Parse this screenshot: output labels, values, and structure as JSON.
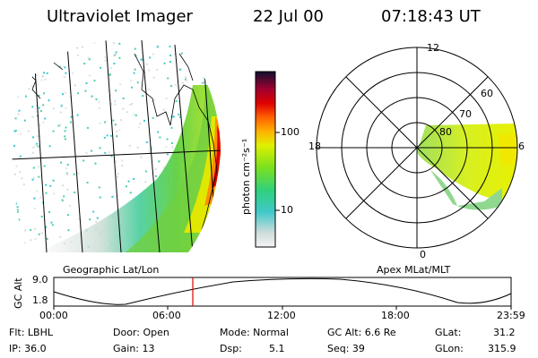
{
  "header": {
    "title": "Ultraviolet Imager",
    "date": "22 Jul 00",
    "time": "07:18:43 UT"
  },
  "colorbar": {
    "unit_label": "photon cm⁻²s⁻¹",
    "tick_high": "100",
    "tick_low": "10",
    "scale": "log"
  },
  "left_panel": {
    "caption": "Geographic Lat/Lon"
  },
  "right_panel": {
    "caption": "Apex MLat/MLT",
    "mlt_labels": {
      "top": "12",
      "left": "18",
      "right": "6",
      "bottom": "0"
    },
    "lat_labels": [
      "60",
      "70",
      "80"
    ]
  },
  "timeline": {
    "ylabel": "GC Alt",
    "y_top": "9.0",
    "y_bottom": "1.8",
    "x_ticks": [
      "00:00",
      "06:00",
      "12:00",
      "18:00",
      "23:59"
    ],
    "marker_time": "07:18:43"
  },
  "info": {
    "flt": "Flt: LBHL",
    "ip": "IP: 36.0",
    "door": "Door: Open",
    "gain": "Gain: 13",
    "mode": "Mode: Normal",
    "dsp": "Dsp:",
    "dsp_val": "5.1",
    "gcalt": "GC Alt: 6.6 Re",
    "seq": "Seq: 39",
    "glat_k": "GLat:",
    "glat_v": "31.2",
    "glon_k": "GLon:",
    "glon_v": "315.9"
  },
  "colors": {
    "low": "#d8dcdc",
    "cyan": "#40c8c8",
    "green": "#50d040",
    "yellow": "#e8e800",
    "orange": "#ff9000",
    "red": "#e00000",
    "darkred": "#800020",
    "marker": "#e00000"
  }
}
